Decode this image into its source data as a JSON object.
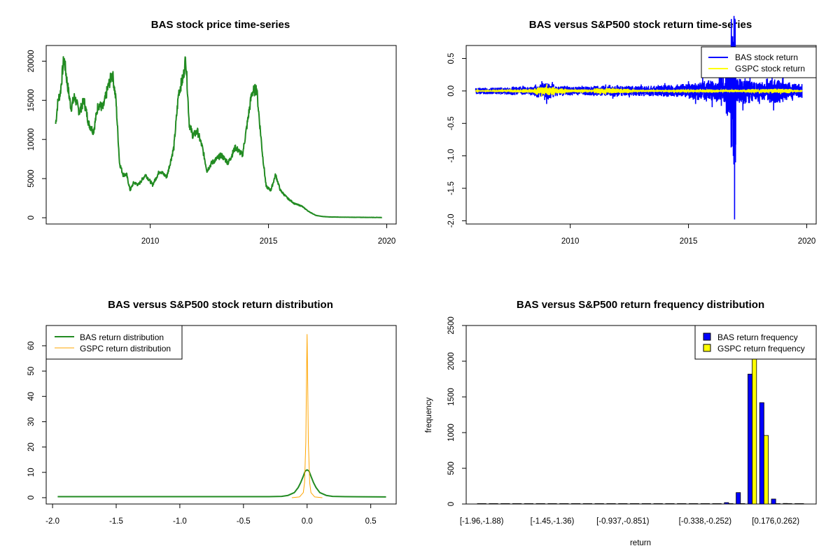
{
  "chart_data": [
    {
      "type": "line",
      "title": "BAS stock price time-series",
      "xlabel": "",
      "ylabel": "",
      "xlim": [
        2005.6,
        2020.4
      ],
      "ylim": [
        -800,
        22000
      ],
      "x_ticks": [
        2010,
        2015,
        2020
      ],
      "x_tick_labels": [
        "2010",
        "2015",
        "2020"
      ],
      "y_ticks": [
        0,
        5000,
        10000,
        15000,
        20000
      ],
      "y_tick_labels": [
        "0",
        "5000",
        "10000",
        "15000",
        "20000"
      ],
      "grid": false,
      "series": [
        {
          "name": "BAS",
          "color": "#228b22",
          "x": [
            2006.0,
            2006.1,
            2006.2,
            2006.35,
            2006.5,
            2006.65,
            2006.8,
            2007.0,
            2007.2,
            2007.4,
            2007.6,
            2007.8,
            2008.0,
            2008.2,
            2008.4,
            2008.55,
            2008.7,
            2008.85,
            2009.0,
            2009.15,
            2009.3,
            2009.5,
            2009.8,
            2010.1,
            2010.4,
            2010.7,
            2011.0,
            2011.2,
            2011.4,
            2011.5,
            2011.65,
            2011.8,
            2012.0,
            2012.2,
            2012.4,
            2012.6,
            2012.8,
            2013.0,
            2013.3,
            2013.6,
            2013.9,
            2014.1,
            2014.3,
            2014.5,
            2014.6,
            2014.75,
            2014.9,
            2015.1,
            2015.3,
            2015.5,
            2015.8,
            2016.1,
            2016.4,
            2016.7,
            2017.0,
            2017.3,
            2017.6,
            2018.0,
            2018.5,
            2019.0,
            2019.5,
            2019.8
          ],
          "y": [
            12000,
            15000,
            16000,
            20500,
            17000,
            14000,
            15500,
            13500,
            15000,
            12000,
            11000,
            14500,
            14000,
            16500,
            18500,
            15000,
            7000,
            5500,
            5500,
            3500,
            4500,
            4200,
            5500,
            4200,
            6000,
            5200,
            9000,
            16000,
            18000,
            20500,
            12000,
            10500,
            11000,
            9000,
            6000,
            7000,
            7500,
            8000,
            7000,
            9000,
            8000,
            12000,
            16000,
            16500,
            13000,
            8000,
            4000,
            3500,
            5500,
            3500,
            2500,
            1800,
            1500,
            800,
            300,
            150,
            100,
            80,
            60,
            50,
            40,
            30
          ]
        }
      ]
    },
    {
      "type": "line",
      "title": "BAS versus S&P500 stock return time-series",
      "xlabel": "",
      "ylabel": "",
      "xlim": [
        2005.6,
        2020.4
      ],
      "ylim": [
        -2.05,
        0.7
      ],
      "x_ticks": [
        2010,
        2015,
        2020
      ],
      "x_tick_labels": [
        "2010",
        "2015",
        "2020"
      ],
      "y_ticks": [
        -2.0,
        -1.5,
        -1.0,
        -0.5,
        0.0,
        0.5
      ],
      "y_tick_labels": [
        "-2.0",
        "-1.5",
        "-1.0",
        "-0.5",
        "0.0",
        "0.5"
      ],
      "legend": [
        "BAS stock return",
        "GSPC stock return"
      ],
      "legend_position": "top-right",
      "grid": false,
      "series": [
        {
          "name": "BAS stock return",
          "color": "#0000ff",
          "x": [
            2006.0,
            2006.5,
            2007.0,
            2007.5,
            2008.0,
            2008.5,
            2008.8,
            2009.0,
            2009.3,
            2010.0,
            2010.5,
            2011.0,
            2011.5,
            2011.8,
            2012.0,
            2012.5,
            2013.0,
            2013.5,
            2014.0,
            2014.5,
            2015.0,
            2015.3,
            2015.6,
            2016.0,
            2016.3,
            2016.6,
            2016.8,
            2016.95,
            2017.0,
            2017.3,
            2017.6,
            2018.0,
            2018.3,
            2018.6,
            2019.0,
            2019.4,
            2019.8
          ],
          "y": [
            0.03,
            -0.05,
            0.05,
            -0.06,
            0.08,
            -0.08,
            0.15,
            -0.2,
            0.1,
            -0.07,
            0.08,
            -0.08,
            0.1,
            -0.12,
            0.09,
            -0.1,
            0.1,
            -0.08,
            0.12,
            -0.09,
            0.15,
            -0.2,
            0.2,
            -0.25,
            0.25,
            -0.35,
            -0.72,
            -1.98,
            0.2,
            -0.3,
            0.25,
            -0.2,
            0.18,
            -0.3,
            0.2,
            -0.15,
            -0.1
          ]
        },
        {
          "name": "GSPC stock return",
          "color": "#ffff00",
          "x": [
            2006.0,
            2007.0,
            2007.5,
            2008.0,
            2008.5,
            2008.8,
            2009.0,
            2009.3,
            2009.8,
            2010.5,
            2011.0,
            2011.5,
            2011.8,
            2012.5,
            2013.5,
            2014.5,
            2015.5,
            2016.0,
            2016.5,
            2017.5,
            2018.0,
            2018.5,
            2018.9,
            2019.3,
            2019.8
          ],
          "y": [
            0.01,
            -0.01,
            0.02,
            -0.03,
            0.04,
            -0.09,
            0.1,
            -0.06,
            0.03,
            -0.03,
            0.02,
            -0.06,
            0.05,
            -0.02,
            0.01,
            -0.02,
            0.03,
            -0.03,
            0.02,
            0.01,
            -0.04,
            0.03,
            -0.05,
            0.02,
            0.01
          ]
        }
      ]
    },
    {
      "type": "line",
      "title": "BAS versus S&P500 stock return distribution",
      "xlabel": "",
      "ylabel": "",
      "xlim": [
        -2.05,
        0.7
      ],
      "ylim": [
        -2.5,
        68
      ],
      "x_ticks": [
        -2.0,
        -1.5,
        -1.0,
        -0.5,
        0.0,
        0.5
      ],
      "x_tick_labels": [
        "-2.0",
        "-1.5",
        "-1.0",
        "-0.5",
        "0.0",
        "0.5"
      ],
      "y_ticks": [
        0,
        10,
        20,
        30,
        40,
        50,
        60
      ],
      "y_tick_labels": [
        "0",
        "10",
        "20",
        "30",
        "40",
        "50",
        "60"
      ],
      "legend": [
        "BAS return distribution",
        "GSPC return distribution"
      ],
      "legend_position": "top-left",
      "grid": false,
      "series": [
        {
          "name": "BAS return distribution",
          "color": "#228b22",
          "x": [
            -1.96,
            -1.0,
            -0.3,
            -0.2,
            -0.15,
            -0.1,
            -0.07,
            -0.05,
            -0.03,
            -0.015,
            0.0,
            0.015,
            0.03,
            0.05,
            0.07,
            0.1,
            0.15,
            0.2,
            0.3,
            0.62
          ],
          "y": [
            0.4,
            0.4,
            0.4,
            0.5,
            0.9,
            2.0,
            4.0,
            6.0,
            8.5,
            10.5,
            11.0,
            10.5,
            8.5,
            6.0,
            4.0,
            2.0,
            0.9,
            0.5,
            0.4,
            0.3
          ]
        },
        {
          "name": "GSPC return distribution",
          "color": "#ffa500",
          "x": [
            -0.12,
            -0.06,
            -0.03,
            -0.02,
            -0.01,
            -0.005,
            0.0,
            0.005,
            0.01,
            0.02,
            0.03,
            0.06,
            0.12
          ],
          "y": [
            0,
            0.3,
            2,
            6,
            22,
            45,
            64.5,
            45,
            22,
            6,
            2,
            0.3,
            0
          ]
        }
      ]
    },
    {
      "type": "bar",
      "title": "BAS versus S&P500 return frequency distribution",
      "xlabel": "return",
      "ylabel": "frequency",
      "ylim": [
        0,
        2500
      ],
      "y_ticks": [
        0,
        500,
        1000,
        1500,
        2000,
        2500
      ],
      "y_tick_labels": [
        "0",
        "500",
        "1000",
        "1500",
        "2000",
        "2500"
      ],
      "x_tick_labels": [
        "[-1.96,-1.88)",
        "[-1.45,-1.36)",
        "[-0.937,-0.851)",
        "[-0.338,-0.252)",
        "[0.176,0.262)"
      ],
      "x_tick_bins": [
        0,
        6,
        12,
        19,
        25
      ],
      "legend": [
        "BAS return frequency",
        "GSPC return frequency"
      ],
      "legend_position": "top-right",
      "grid": false,
      "bin_count": 28,
      "series": [
        {
          "name": "BAS return frequency",
          "color": "#0000ff",
          "values": [
            1,
            0,
            0,
            0,
            0,
            0,
            0,
            0,
            0,
            0,
            0,
            0,
            0,
            0,
            0,
            0,
            0,
            0,
            0,
            1,
            5,
            20,
            160,
            1820,
            1420,
            70,
            8,
            2
          ]
        },
        {
          "name": "GSPC return frequency",
          "color": "#ffff00",
          "values": [
            0,
            0,
            0,
            0,
            0,
            0,
            0,
            0,
            0,
            0,
            0,
            0,
            0,
            0,
            0,
            0,
            0,
            0,
            0,
            0,
            0,
            0,
            0,
            2050,
            960,
            0,
            0,
            0
          ]
        }
      ]
    }
  ]
}
